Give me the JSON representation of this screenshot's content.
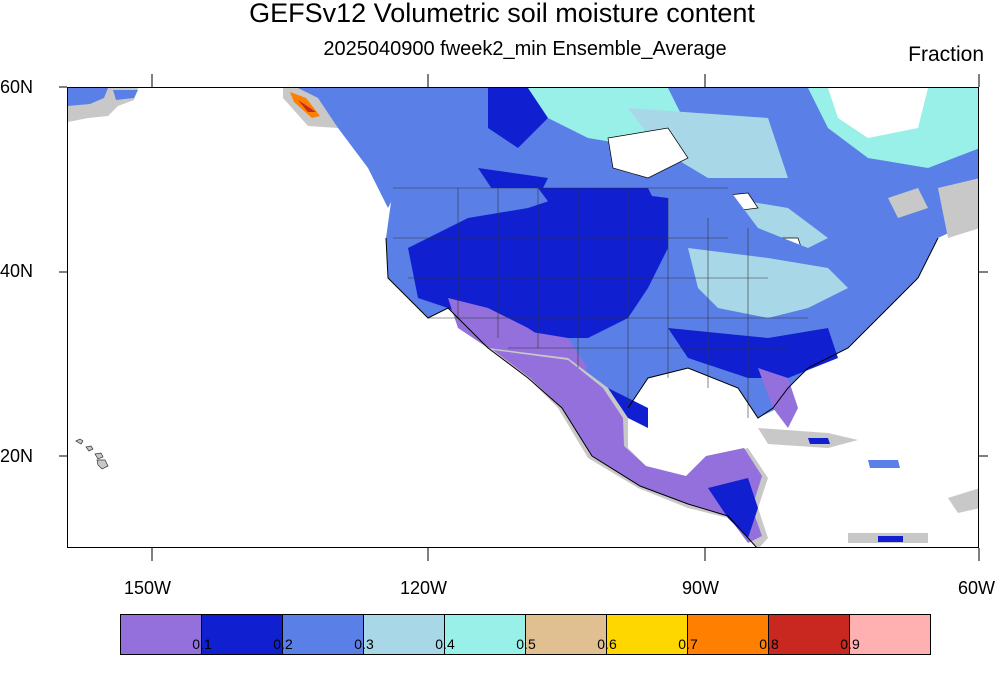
{
  "title": "GEFSv12 Volumetric soil moisture content",
  "subtitle": "2025040900 fweek2_min Ensemble_Average",
  "units": "Fraction",
  "lat_labels": [
    "60N",
    "40N",
    "20N"
  ],
  "lon_labels": [
    "150W",
    "120W",
    "90W",
    "60W"
  ],
  "colorbar": {
    "colors": [
      "#9370db",
      "#1020d0",
      "#5a80e8",
      "#a8d8e8",
      "#98f0e8",
      "#e0c090",
      "#ffd700",
      "#ff7f00",
      "#c82820",
      "#ffb0b0"
    ],
    "labels": [
      "0.1",
      "0.2",
      "0.3",
      "0.4",
      "0.5",
      "0.6",
      "0.7",
      "0.8",
      "0.9"
    ]
  },
  "colors": {
    "missing": "#c8c8c8",
    "ocean": "#ffffff",
    "outline": "#000000"
  }
}
